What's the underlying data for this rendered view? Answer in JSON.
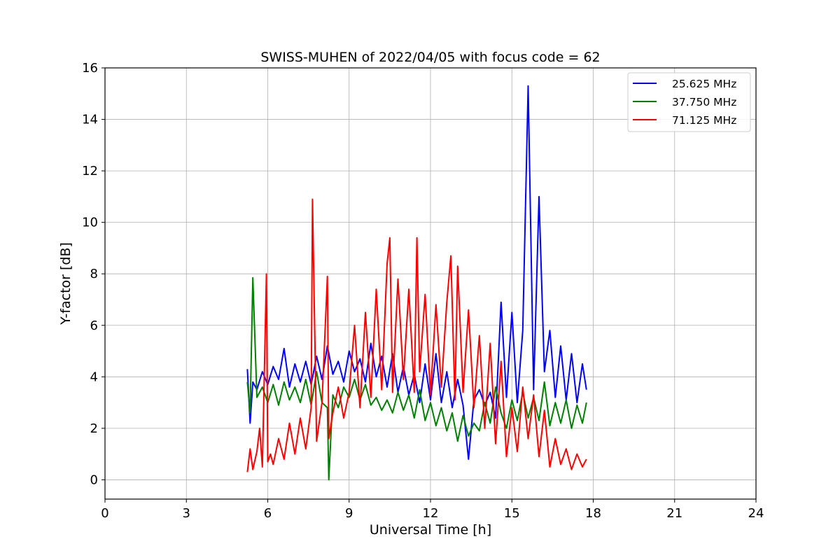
{
  "chart_data": {
    "type": "line",
    "title": "SWISS-MUHEN of 2022/04/05 with focus code = 62",
    "xlabel": "Universal Time [h]",
    "ylabel": "Y-factor [dB]",
    "xlim": [
      0,
      24
    ],
    "ylim": [
      -0.75,
      16
    ],
    "xticks": [
      0,
      3,
      6,
      9,
      12,
      15,
      18,
      21,
      24
    ],
    "yticks": [
      0,
      2,
      4,
      6,
      8,
      10,
      12,
      14,
      16
    ],
    "grid": true,
    "legend_position": "top-right",
    "series": [
      {
        "name": "25.625 MHz",
        "color": "#0000ff",
        "x": [
          5.25,
          5.35,
          5.45,
          5.6,
          5.8,
          6.0,
          6.2,
          6.4,
          6.6,
          6.8,
          7.0,
          7.2,
          7.4,
          7.6,
          7.8,
          8.0,
          8.2,
          8.4,
          8.6,
          8.8,
          9.0,
          9.2,
          9.4,
          9.6,
          9.8,
          10.0,
          10.2,
          10.4,
          10.6,
          10.8,
          11.0,
          11.2,
          11.4,
          11.6,
          11.8,
          12.0,
          12.2,
          12.4,
          12.6,
          12.8,
          13.0,
          13.2,
          13.4,
          13.6,
          13.8,
          14.0,
          14.2,
          14.4,
          14.6,
          14.8,
          15.0,
          15.2,
          15.4,
          15.6,
          15.8,
          16.0,
          16.2,
          16.4,
          16.6,
          16.8,
          17.0,
          17.2,
          17.4,
          17.6,
          17.75
        ],
        "values": [
          4.3,
          2.2,
          3.8,
          3.5,
          4.2,
          3.7,
          4.4,
          3.9,
          5.1,
          3.6,
          4.5,
          3.8,
          4.6,
          3.7,
          4.8,
          3.9,
          5.2,
          4.1,
          4.6,
          3.8,
          5.0,
          4.2,
          4.7,
          3.8,
          5.3,
          4.0,
          4.8,
          3.6,
          4.9,
          3.4,
          4.4,
          3.3,
          4.1,
          3.0,
          4.5,
          3.1,
          4.9,
          3.0,
          4.2,
          2.8,
          3.9,
          2.9,
          0.8,
          3.1,
          3.5,
          2.9,
          3.4,
          2.4,
          6.9,
          3.2,
          6.5,
          3.0,
          5.8,
          15.3,
          3.5,
          11.0,
          4.2,
          5.8,
          3.2,
          5.2,
          3.1,
          4.9,
          3.0,
          4.5,
          3.5
        ]
      },
      {
        "name": "37.750 MHz",
        "color": "#008000",
        "x": [
          5.25,
          5.35,
          5.45,
          5.6,
          5.8,
          6.0,
          6.2,
          6.4,
          6.6,
          6.8,
          7.0,
          7.2,
          7.4,
          7.6,
          7.8,
          8.0,
          8.2,
          8.25,
          8.4,
          8.6,
          8.8,
          9.0,
          9.2,
          9.4,
          9.6,
          9.8,
          10.0,
          10.2,
          10.4,
          10.6,
          10.8,
          11.0,
          11.2,
          11.4,
          11.6,
          11.8,
          12.0,
          12.2,
          12.4,
          12.6,
          12.8,
          13.0,
          13.2,
          13.4,
          13.6,
          13.8,
          14.0,
          14.2,
          14.4,
          14.6,
          14.8,
          15.0,
          15.2,
          15.4,
          15.6,
          15.8,
          16.0,
          16.2,
          16.4,
          16.6,
          16.8,
          17.0,
          17.2,
          17.4,
          17.6,
          17.75
        ],
        "values": [
          3.8,
          2.6,
          7.85,
          3.2,
          3.6,
          3.0,
          3.7,
          2.9,
          3.8,
          3.1,
          3.6,
          3.0,
          3.9,
          2.9,
          4.2,
          3.0,
          2.8,
          0.0,
          3.3,
          2.8,
          3.6,
          3.2,
          3.9,
          3.1,
          3.7,
          2.9,
          3.2,
          2.7,
          3.1,
          2.6,
          3.4,
          2.7,
          3.3,
          2.4,
          3.5,
          2.3,
          3.0,
          2.1,
          2.8,
          1.9,
          2.6,
          1.5,
          2.5,
          1.7,
          2.2,
          1.9,
          3.0,
          2.2,
          3.6,
          2.6,
          2.0,
          3.1,
          2.3,
          3.4,
          2.4,
          3.2,
          2.3,
          3.8,
          2.1,
          3.0,
          2.2,
          3.1,
          2.0,
          2.9,
          2.2,
          3.0
        ]
      },
      {
        "name": "71.125 MHz",
        "color": "#ff0000",
        "x": [
          5.25,
          5.35,
          5.45,
          5.6,
          5.7,
          5.8,
          5.95,
          6.0,
          6.1,
          6.2,
          6.4,
          6.6,
          6.8,
          7.0,
          7.2,
          7.4,
          7.6,
          7.65,
          7.8,
          8.0,
          8.2,
          8.25,
          8.4,
          8.6,
          8.8,
          9.0,
          9.2,
          9.4,
          9.6,
          9.8,
          10.0,
          10.2,
          10.4,
          10.5,
          10.6,
          10.8,
          11.0,
          11.2,
          11.4,
          11.5,
          11.6,
          11.8,
          12.0,
          12.2,
          12.4,
          12.6,
          12.75,
          12.9,
          13.0,
          13.2,
          13.4,
          13.6,
          13.8,
          14.0,
          14.2,
          14.4,
          14.6,
          14.8,
          15.0,
          15.2,
          15.4,
          15.6,
          15.8,
          16.0,
          16.2,
          16.4,
          16.6,
          16.8,
          17.0,
          17.2,
          17.4,
          17.6,
          17.75
        ],
        "values": [
          0.3,
          1.2,
          0.4,
          1.1,
          2.0,
          0.5,
          8.0,
          0.7,
          1.0,
          0.6,
          1.6,
          0.8,
          2.2,
          1.0,
          2.4,
          1.2,
          2.8,
          10.9,
          1.5,
          3.0,
          7.9,
          1.6,
          2.6,
          3.6,
          2.4,
          3.4,
          6.0,
          2.8,
          6.5,
          3.2,
          7.4,
          3.5,
          8.4,
          9.4,
          3.4,
          7.8,
          3.9,
          7.4,
          3.4,
          9.4,
          4.2,
          7.2,
          3.3,
          6.8,
          3.6,
          6.9,
          8.7,
          3.1,
          8.3,
          3.4,
          6.6,
          2.8,
          5.6,
          2.0,
          5.3,
          1.4,
          4.6,
          0.9,
          2.8,
          1.1,
          3.6,
          1.6,
          3.3,
          0.9,
          2.7,
          0.5,
          1.6,
          0.6,
          1.2,
          0.4,
          1.0,
          0.5,
          0.8
        ]
      }
    ]
  }
}
